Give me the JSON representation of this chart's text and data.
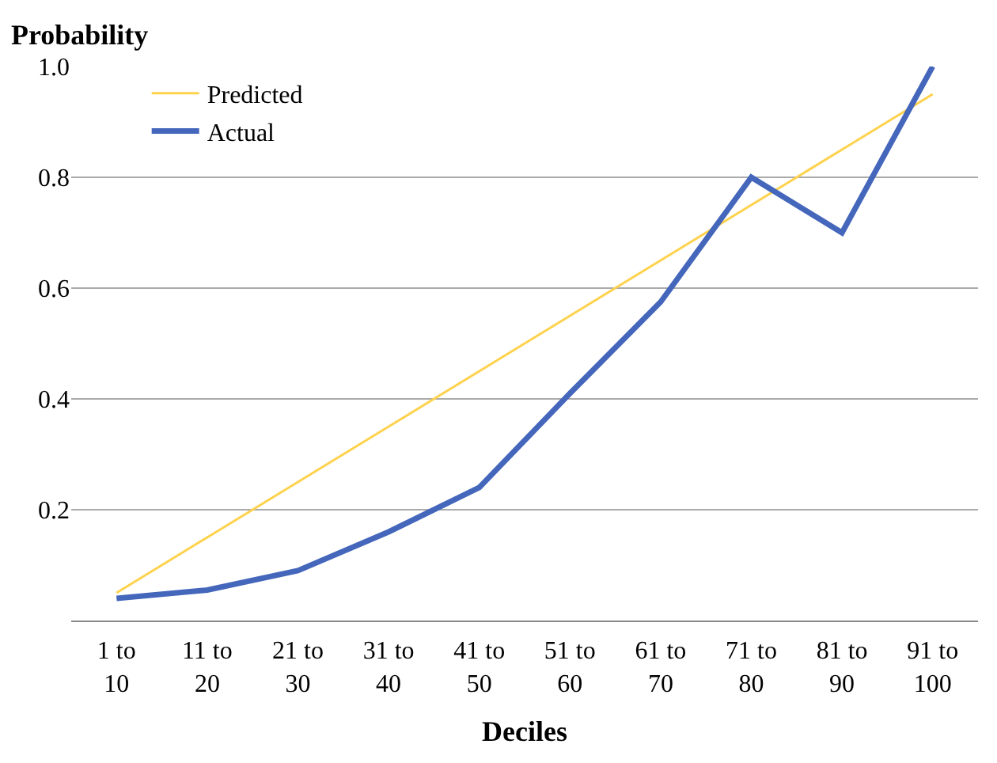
{
  "chart_data": {
    "type": "line",
    "ylabel": "Probability",
    "xlabel": "Deciles",
    "categories": [
      "1 to 10",
      "11 to 20",
      "21 to 30",
      "31 to 40",
      "41 to 50",
      "51 to 60",
      "61 to 70",
      "71 to 80",
      "81 to 90",
      "91 to 100"
    ],
    "series": [
      {
        "name": "Predicted",
        "color": "#ffd24d",
        "values": [
          0.05,
          0.15,
          0.25,
          0.35,
          0.45,
          0.55,
          0.65,
          0.75,
          0.85,
          0.95
        ]
      },
      {
        "name": "Actual",
        "color": "#4466bb",
        "values": [
          0.04,
          0.055,
          0.09,
          0.16,
          0.24,
          0.41,
          0.575,
          0.8,
          0.7,
          1.0
        ]
      }
    ],
    "ylim": [
      0,
      1.0
    ],
    "yticks": [
      0.2,
      0.4,
      0.6,
      0.8,
      {
        "value": 1.0,
        "label": "1.0"
      }
    ],
    "grid": "y",
    "legend": "top left",
    "marker": "none",
    "line_style": "solid"
  }
}
